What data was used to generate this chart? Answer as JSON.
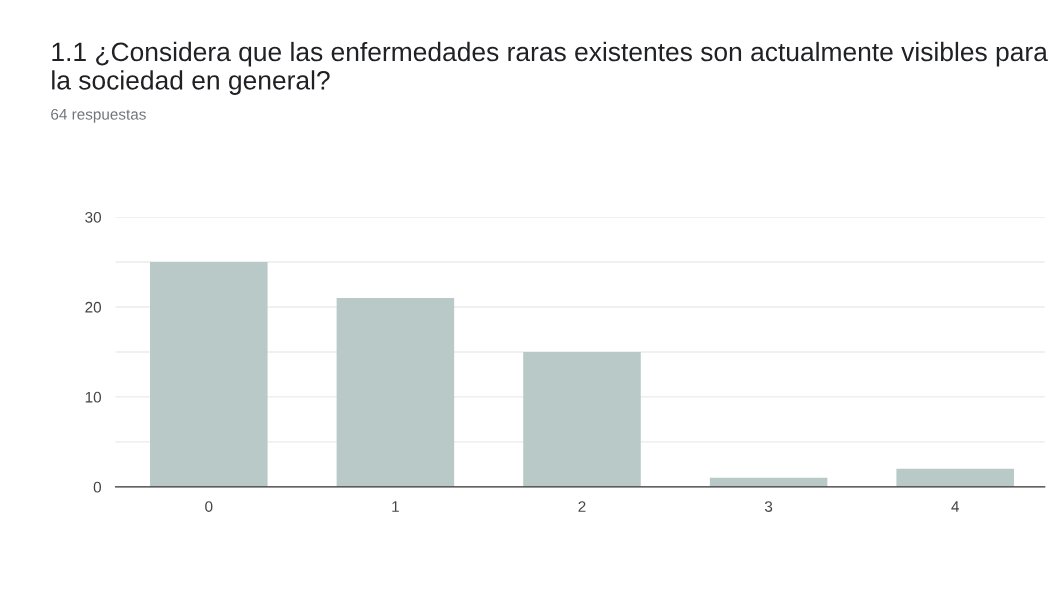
{
  "chart_data": {
    "type": "bar",
    "title": "1.1 ¿Considera que las enfermedades raras existentes son actualmente visibles para la sociedad en general?",
    "subtitle": "64 respuestas",
    "categories": [
      "0",
      "1",
      "2",
      "3",
      "4"
    ],
    "values": [
      25,
      21,
      15,
      1,
      2
    ],
    "color": "#b9c9c7",
    "ylim": [
      0,
      30
    ],
    "yticks": [
      0,
      {
        "value": 5,
        "label": null
      },
      10,
      {
        "value": 15,
        "label": null
      },
      20,
      {
        "value": 25,
        "label": null
      },
      30
    ],
    "grid": "y"
  }
}
